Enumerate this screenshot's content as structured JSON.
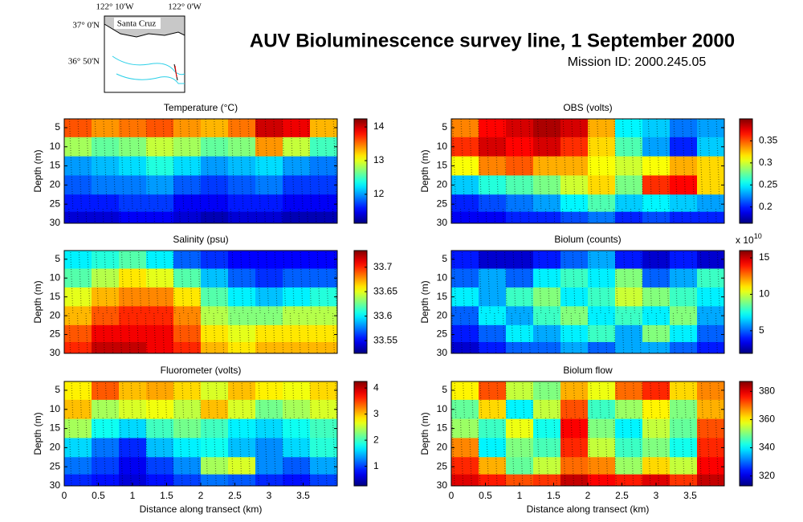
{
  "header": {
    "title": "AUV Bioluminescence survey line, 1 September 2000",
    "subtitle": "Mission ID: 2000.245.05"
  },
  "inset": {
    "lon_labels": [
      "122° 10'W",
      "122° 0'W"
    ],
    "lat_labels": [
      "37° 0'N",
      "36° 50'N"
    ],
    "place": "Santa Cruz"
  },
  "chart_data": [
    {
      "type": "heatmap",
      "title": "Temperature (°C)",
      "ylabel": "Depth (m)",
      "colormap": "jet",
      "x": [
        0.2,
        0.6,
        1.0,
        1.4,
        1.8,
        2.2,
        2.6,
        3.0,
        3.4,
        3.8
      ],
      "y": [
        5,
        10,
        15,
        20,
        25,
        29
      ],
      "z": [
        [
          13.6,
          13.4,
          13.5,
          13.6,
          13.4,
          13.3,
          13.5,
          14.0,
          13.9,
          13.3
        ],
        [
          12.8,
          12.6,
          12.7,
          12.9,
          12.8,
          12.6,
          12.7,
          13.4,
          12.9,
          12.5
        ],
        [
          12.0,
          12.1,
          12.2,
          12.4,
          12.2,
          12.0,
          12.1,
          12.2,
          12.0,
          11.9
        ],
        [
          11.8,
          11.9,
          11.9,
          12.0,
          11.8,
          11.7,
          11.8,
          11.9,
          11.7,
          11.7
        ],
        [
          11.6,
          11.6,
          11.7,
          11.7,
          11.5,
          11.5,
          11.6,
          11.6,
          11.5,
          11.5
        ],
        [
          11.4,
          11.4,
          11.5,
          11.5,
          11.4,
          11.3,
          11.4,
          11.4,
          11.3,
          11.3
        ]
      ],
      "xlim": [
        0,
        4
      ],
      "ylim": [
        2.7,
        30
      ],
      "y_reversed": true,
      "yticks": [
        5,
        10,
        15,
        20,
        25,
        30
      ],
      "clim": [
        11.14,
        14.24
      ],
      "cticks": [
        12,
        13,
        14
      ]
    },
    {
      "type": "heatmap",
      "title": "OBS (volts)",
      "ylabel": "Depth (m)",
      "colormap": "jet",
      "x": [
        0.2,
        0.6,
        1.0,
        1.4,
        1.8,
        2.2,
        2.6,
        3.0,
        3.4,
        3.8
      ],
      "y": [
        5,
        10,
        15,
        20,
        25,
        29
      ],
      "z": [
        [
          0.34,
          0.37,
          0.38,
          0.39,
          0.38,
          0.33,
          0.25,
          0.24,
          0.22,
          0.23
        ],
        [
          0.36,
          0.38,
          0.37,
          0.38,
          0.36,
          0.32,
          0.27,
          0.23,
          0.2,
          0.24
        ],
        [
          0.31,
          0.34,
          0.35,
          0.33,
          0.33,
          0.31,
          0.3,
          0.31,
          0.33,
          0.32
        ],
        [
          0.24,
          0.26,
          0.27,
          0.28,
          0.3,
          0.32,
          0.28,
          0.36,
          0.37,
          0.32
        ],
        [
          0.2,
          0.21,
          0.22,
          0.23,
          0.25,
          0.27,
          0.24,
          0.25,
          0.24,
          0.23
        ],
        [
          0.19,
          0.19,
          0.2,
          0.2,
          0.21,
          0.22,
          0.2,
          0.21,
          0.2,
          0.2
        ]
      ],
      "xlim": [
        0,
        4
      ],
      "ylim": [
        2.7,
        30
      ],
      "y_reversed": true,
      "yticks": [
        5,
        10,
        15,
        20,
        25,
        30
      ],
      "clim": [
        0.163,
        0.4
      ],
      "cticks": [
        0.2,
        0.25,
        0.3,
        0.35
      ]
    },
    {
      "type": "heatmap",
      "title": "Salinity (psu)",
      "ylabel": "Depth (m)",
      "colormap": "jet",
      "x": [
        0.2,
        0.6,
        1.0,
        1.4,
        1.8,
        2.2,
        2.6,
        3.0,
        3.4,
        3.8
      ],
      "y": [
        5,
        10,
        15,
        20,
        25,
        29
      ],
      "z": [
        [
          33.6,
          33.61,
          33.62,
          33.6,
          33.57,
          33.56,
          33.55,
          33.55,
          33.55,
          33.55
        ],
        [
          33.62,
          33.64,
          33.66,
          33.65,
          33.62,
          33.59,
          33.57,
          33.56,
          33.57,
          33.57
        ],
        [
          33.65,
          33.67,
          33.68,
          33.68,
          33.66,
          33.62,
          33.6,
          33.59,
          33.6,
          33.61
        ],
        [
          33.67,
          33.69,
          33.7,
          33.7,
          33.68,
          33.64,
          33.63,
          33.63,
          33.64,
          33.64
        ],
        [
          33.69,
          33.71,
          33.71,
          33.71,
          33.69,
          33.66,
          33.65,
          33.66,
          33.66,
          33.66
        ],
        [
          33.7,
          33.72,
          33.72,
          33.71,
          33.7,
          33.67,
          33.66,
          33.67,
          33.67,
          33.67
        ]
      ],
      "xlim": [
        0,
        4
      ],
      "ylim": [
        2.7,
        30
      ],
      "y_reversed": true,
      "yticks": [
        5,
        10,
        15,
        20,
        25,
        30
      ],
      "clim": [
        33.524,
        33.734
      ],
      "cticks": [
        33.55,
        33.6,
        33.65,
        33.7
      ]
    },
    {
      "type": "heatmap",
      "title": "Biolum (counts)",
      "ylabel": "Depth (m)",
      "colormap": "jet",
      "x": [
        0.2,
        0.6,
        1.0,
        1.4,
        1.8,
        2.2,
        2.6,
        3.0,
        3.4,
        3.8
      ],
      "y": [
        5,
        10,
        15,
        20,
        25,
        29
      ],
      "z": [
        [
          4,
          3,
          3,
          4,
          5,
          6,
          4,
          3,
          4,
          3
        ],
        [
          5,
          6,
          5,
          7,
          8,
          7,
          9,
          5,
          6,
          8
        ],
        [
          7,
          6,
          8,
          9,
          7,
          8,
          10,
          9,
          8,
          7
        ],
        [
          5,
          7,
          6,
          8,
          9,
          7,
          8,
          7,
          9,
          6
        ],
        [
          4,
          5,
          7,
          6,
          7,
          8,
          6,
          9,
          7,
          5
        ],
        [
          3,
          4,
          5,
          5,
          6,
          5,
          6,
          6,
          5,
          4
        ]
      ],
      "xlim": [
        0,
        4
      ],
      "ylim": [
        2.7,
        30
      ],
      "y_reversed": true,
      "yticks": [
        5,
        10,
        15,
        20,
        25,
        30
      ],
      "clim": [
        1.9,
        16
      ],
      "cticks": [
        5,
        10,
        15
      ],
      "cscale": {
        "base": "x 10",
        "exponent": "10"
      }
    },
    {
      "type": "heatmap",
      "title": "Fluorometer (volts)",
      "ylabel": "Depth (m)",
      "xlabel": "Distance along transect (km)",
      "colormap": "jet",
      "x": [
        0.2,
        0.6,
        1.0,
        1.4,
        1.8,
        2.2,
        2.6,
        3.0,
        3.4,
        3.8
      ],
      "y": [
        5,
        10,
        15,
        20,
        25,
        29
      ],
      "z": [
        [
          2.8,
          3.4,
          3.0,
          3.1,
          2.9,
          2.6,
          3.0,
          2.8,
          2.7,
          2.9
        ],
        [
          3.0,
          2.4,
          2.6,
          2.7,
          2.5,
          3.0,
          2.6,
          2.2,
          2.4,
          2.6
        ],
        [
          2.4,
          1.8,
          1.6,
          2.0,
          2.2,
          2.0,
          1.7,
          1.6,
          1.8,
          2.0
        ],
        [
          1.6,
          1.2,
          0.9,
          1.5,
          1.7,
          1.8,
          1.5,
          1.3,
          1.6,
          1.9
        ],
        [
          1.2,
          1.0,
          0.7,
          1.0,
          1.3,
          2.4,
          2.6,
          1.3,
          1.1,
          1.4
        ],
        [
          0.9,
          0.8,
          0.6,
          0.8,
          1.0,
          1.2,
          1.1,
          0.9,
          0.8,
          1.0
        ]
      ],
      "xlim": [
        0,
        4
      ],
      "ylim": [
        2.7,
        30
      ],
      "y_reversed": true,
      "yticks": [
        5,
        10,
        15,
        20,
        25,
        30
      ],
      "xticks": [
        0,
        0.5,
        1,
        1.5,
        2,
        2.5,
        3,
        3.5
      ],
      "clim": [
        0.25,
        4.25
      ],
      "cticks": [
        1,
        2,
        3,
        4
      ]
    },
    {
      "type": "heatmap",
      "title": "Biolum flow",
      "ylabel": "Depth (m)",
      "xlabel": "Distance along transect (km)",
      "colormap": "jet",
      "x": [
        0.2,
        0.6,
        1.0,
        1.4,
        1.8,
        2.2,
        2.6,
        3.0,
        3.4,
        3.8
      ],
      "y": [
        5,
        10,
        15,
        20,
        25,
        29
      ],
      "z": [
        [
          360,
          372,
          355,
          350,
          365,
          358,
          370,
          375,
          362,
          368
        ],
        [
          348,
          362,
          340,
          355,
          372,
          345,
          352,
          360,
          350,
          365
        ],
        [
          352,
          345,
          358,
          342,
          378,
          350,
          340,
          355,
          348,
          372
        ],
        [
          368,
          340,
          350,
          346,
          375,
          355,
          345,
          350,
          342,
          375
        ],
        [
          375,
          365,
          348,
          355,
          370,
          368,
          352,
          362,
          355,
          378
        ],
        [
          380,
          376,
          372,
          374,
          382,
          378,
          376,
          380,
          374,
          382
        ]
      ],
      "xlim": [
        0,
        4
      ],
      "ylim": [
        2.7,
        30
      ],
      "y_reversed": true,
      "yticks": [
        5,
        10,
        15,
        20,
        25,
        30
      ],
      "xticks": [
        0,
        0.5,
        1,
        1.5,
        2,
        2.5,
        3,
        3.5
      ],
      "clim": [
        313,
        387
      ],
      "cticks": [
        320,
        340,
        360,
        380
      ]
    }
  ]
}
